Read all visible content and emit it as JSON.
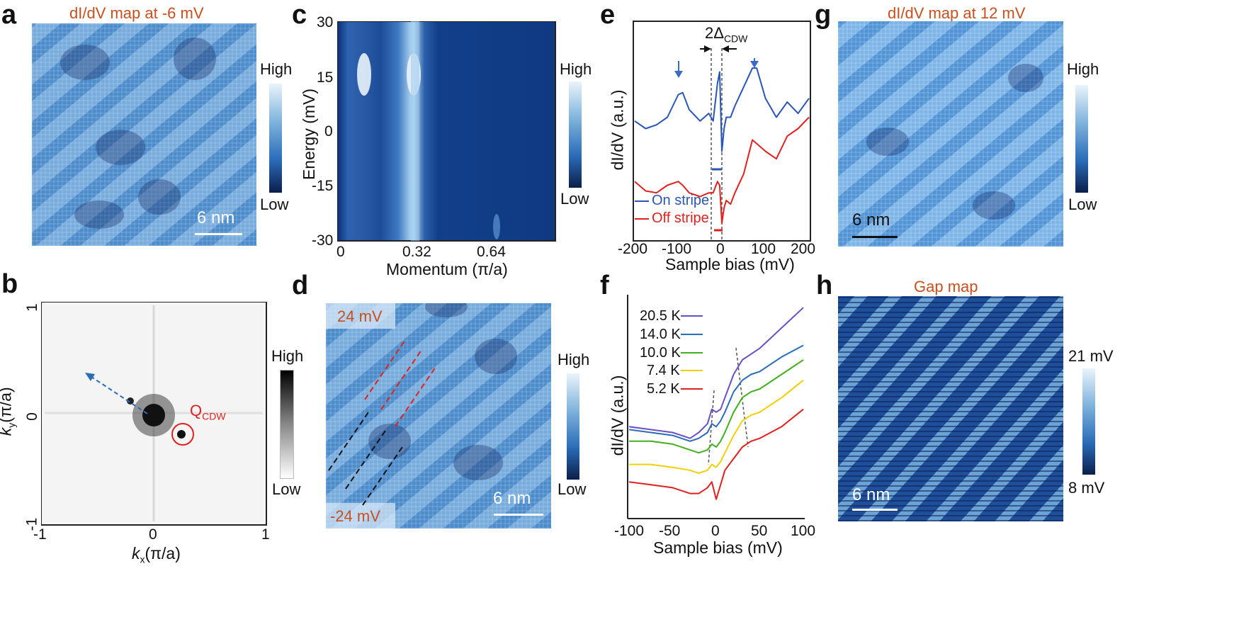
{
  "panels": {
    "a": {
      "label": "a",
      "title": "dI/dV map at -6 mV",
      "cb_high": "High",
      "cb_low": "Low",
      "scale": "6 nm"
    },
    "b": {
      "label": "b",
      "cb_high": "High",
      "cb_low": "Low",
      "qcdw": "Q",
      "qcdw_sub": "CDW",
      "xlabel": "k",
      "xlabel_sub": "x",
      "xlabel_unit": "(π/a)",
      "ylabel": "k",
      "ylabel_sub": "y",
      "ylabel_unit": "(π/a)",
      "xticks": [
        "-1",
        "0",
        "1"
      ],
      "yticks": [
        "1",
        "0",
        "-1"
      ]
    },
    "c": {
      "label": "c",
      "ylabel": "Energy (mV)",
      "xlabel": "Momentum (π/a)",
      "cb_high": "High",
      "cb_low": "Low",
      "yticks": [
        "30",
        "15",
        "0",
        "-15",
        "-30"
      ],
      "xticks": [
        "0",
        "0.32",
        "0.64"
      ]
    },
    "d": {
      "label": "d",
      "tag_top": "24 mV",
      "tag_bottom": "-24 mV",
      "cb_high": "High",
      "cb_low": "Low",
      "scale": "6 nm"
    },
    "e": {
      "label": "e",
      "ylabel": "dI/dV (a.u.)",
      "xlabel": "Sample bias (mV)",
      "gap_label": "2Δ",
      "gap_sub": "CDW",
      "xticks": [
        "-200",
        "-100",
        "0",
        "100",
        "200"
      ],
      "legend": [
        "On stripe",
        "Off stripe"
      ]
    },
    "f": {
      "label": "f",
      "ylabel": "dI/dV (a.u.)",
      "xlabel": "Sample bias (mV)",
      "xticks": [
        "-100",
        "-50",
        "0",
        "50",
        "100"
      ],
      "legend": [
        "20.5 K",
        "14.0 K",
        "10.0 K",
        "7.4 K",
        "5.2 K"
      ]
    },
    "g": {
      "label": "g",
      "title": "dI/dV map at 12 mV",
      "cb_high": "High",
      "cb_low": "Low",
      "scale": "6 nm"
    },
    "h": {
      "label": "h",
      "title": "Gap map",
      "cb_high": "21 mV",
      "cb_low": "8 mV",
      "scale": "6 nm"
    }
  },
  "colors": {
    "on_stripe": "#2a55b8",
    "off_stripe": "#e0221e",
    "title": "#c8501e",
    "t20": "#6a4fc7",
    "t14": "#2a6cb8",
    "t10": "#43b020",
    "t7": "#f0d000",
    "t5": "#e0221e"
  },
  "chart_data": [
    {
      "panel": "e",
      "type": "line",
      "x": [
        -200,
        -175,
        -150,
        -125,
        -100,
        -90,
        -75,
        -50,
        -30,
        -20,
        -10,
        -5,
        0,
        5,
        10,
        20,
        30,
        50,
        70,
        80,
        100,
        125,
        150,
        175,
        200
      ],
      "xlim": [
        -200,
        200
      ],
      "series": [
        {
          "name": "On stripe",
          "values": [
            3.2,
            3.0,
            3.1,
            3.3,
            3.9,
            3.95,
            3.5,
            3.2,
            3.4,
            3.2,
            4.2,
            4.5,
            2.4,
            3.0,
            3.3,
            3.3,
            3.6,
            4.1,
            4.6,
            4.6,
            3.8,
            3.3,
            3.7,
            3.4,
            3.8
          ]
        },
        {
          "name": "Off stripe",
          "values": [
            1.6,
            1.35,
            1.3,
            1.5,
            1.6,
            1.5,
            1.3,
            1.2,
            1.3,
            1.3,
            1.6,
            1.5,
            0.5,
            0.9,
            1.1,
            1.0,
            1.3,
            1.8,
            2.7,
            2.6,
            2.4,
            2.2,
            2.8,
            3.0,
            3.3
          ]
        }
      ]
    },
    {
      "panel": "f",
      "type": "line",
      "x": [
        -100,
        -75,
        -50,
        -30,
        -20,
        -10,
        -5,
        0,
        5,
        10,
        20,
        30,
        40,
        50,
        75,
        100
      ],
      "xlim": [
        -100,
        100
      ],
      "series": [
        {
          "name": "20.5 K",
          "values": [
            3.6,
            3.5,
            3.4,
            3.2,
            3.4,
            3.7,
            4.2,
            4.1,
            4.2,
            4.6,
            5.4,
            5.9,
            6.1,
            6.3,
            7.0,
            7.7
          ]
        },
        {
          "name": "14.0 K",
          "values": [
            3.5,
            3.4,
            3.3,
            3.1,
            3.2,
            3.4,
            3.7,
            3.6,
            3.8,
            4.1,
            4.8,
            5.2,
            5.4,
            5.5,
            6.0,
            6.4
          ]
        },
        {
          "name": "10.0 K",
          "values": [
            3.1,
            3.1,
            3.0,
            2.8,
            2.7,
            2.8,
            3.0,
            2.9,
            3.1,
            3.4,
            4.1,
            4.6,
            4.8,
            4.9,
            5.4,
            5.9
          ]
        },
        {
          "name": "7.4 K",
          "values": [
            2.3,
            2.3,
            2.2,
            2.1,
            2.0,
            2.1,
            2.3,
            2.2,
            2.4,
            2.7,
            3.3,
            3.8,
            4.0,
            4.1,
            4.6,
            5.2
          ]
        },
        {
          "name": "5.2 K",
          "values": [
            1.7,
            1.6,
            1.5,
            1.3,
            1.3,
            1.5,
            1.7,
            1.1,
            1.6,
            2.1,
            2.5,
            2.9,
            3.1,
            3.2,
            3.6,
            4.2
          ]
        }
      ]
    }
  ]
}
